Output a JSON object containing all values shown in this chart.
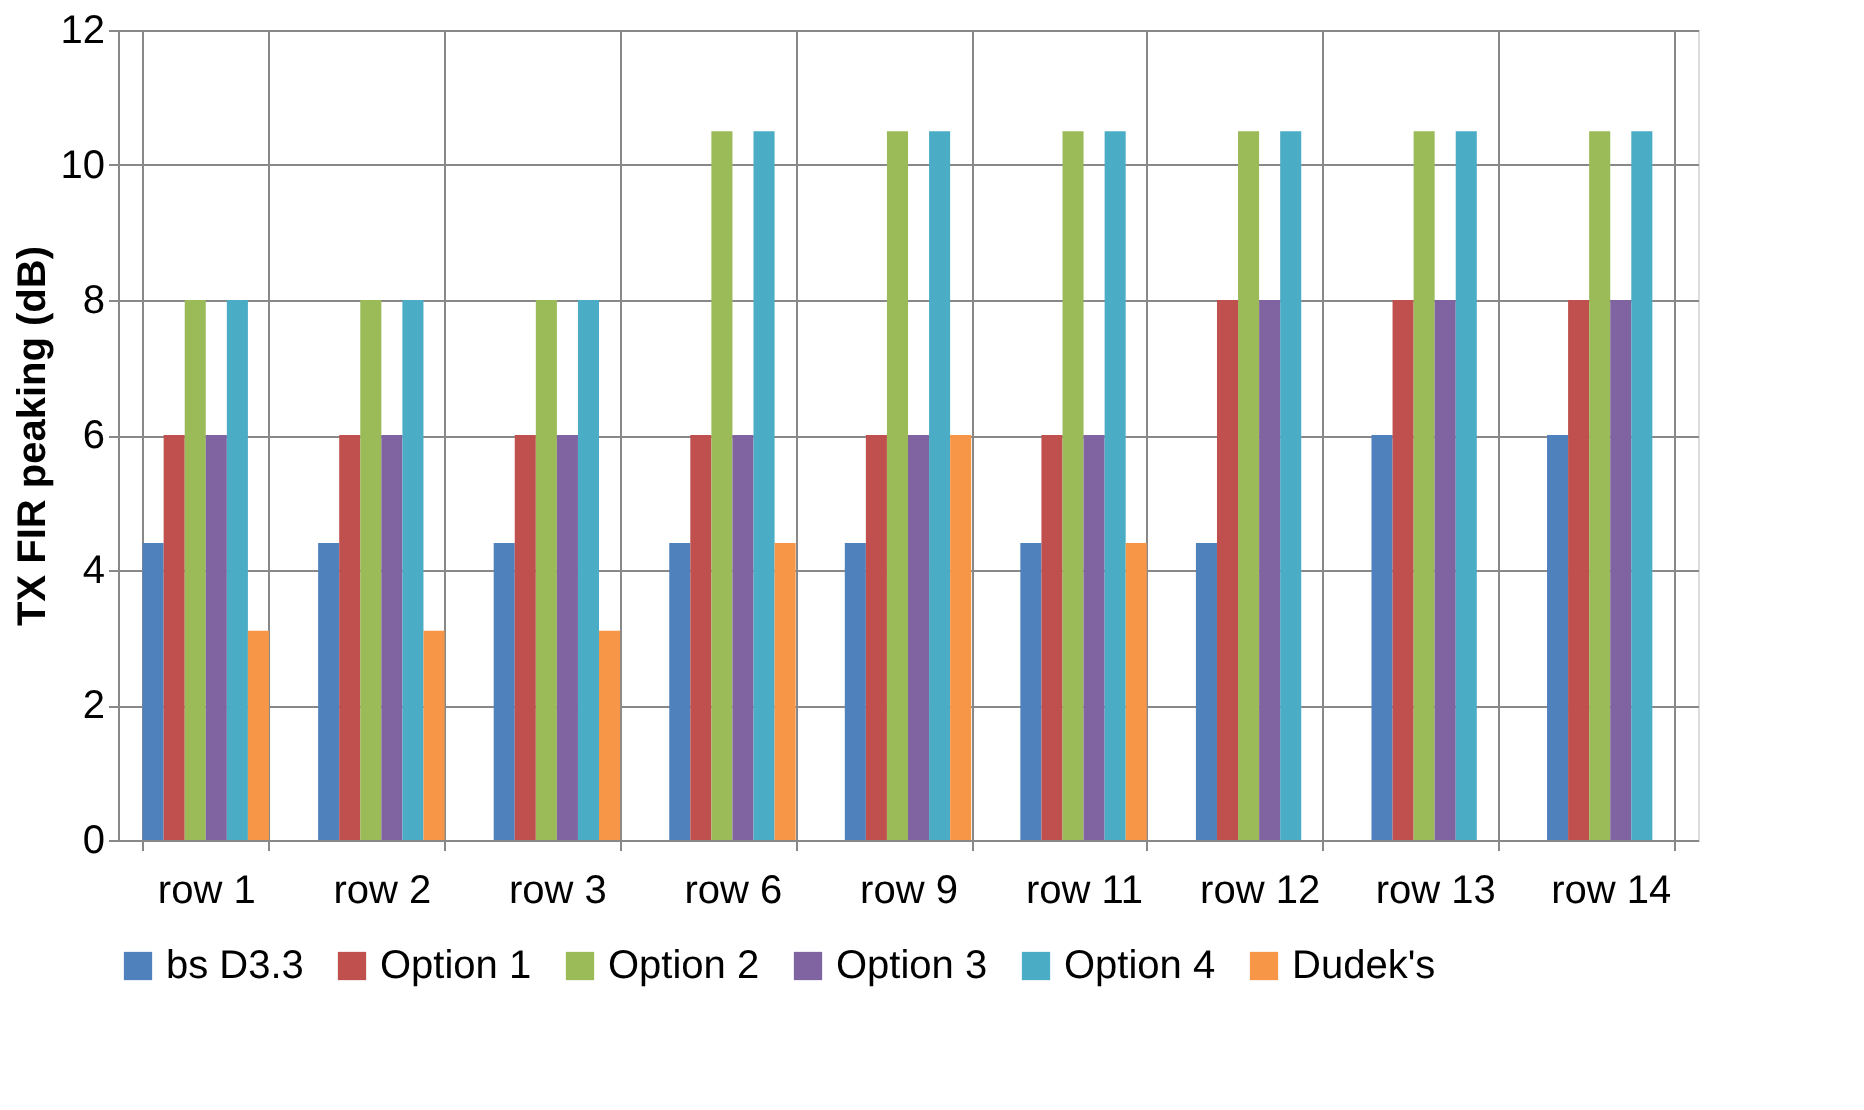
{
  "chart_data": {
    "type": "bar",
    "ylabel": "TX FIR peaking (dB)",
    "categories": [
      "row 1",
      "row 2",
      "row 3",
      "row 6",
      "row 9",
      "row 11",
      "row 12",
      "row 13",
      "row 14"
    ],
    "series": [
      {
        "name": "bs D3.3",
        "color": "#4f81bd",
        "values": [
          4.4,
          4.4,
          4.4,
          4.4,
          4.4,
          4.4,
          4.4,
          6,
          6
        ]
      },
      {
        "name": "Option 1",
        "color": "#c0504d",
        "values": [
          6,
          6,
          6,
          6,
          6,
          6,
          8,
          8,
          8
        ]
      },
      {
        "name": "Option 2",
        "color": "#9bbb59",
        "values": [
          8,
          8,
          8,
          10.5,
          10.5,
          10.5,
          10.5,
          10.5,
          10.5
        ]
      },
      {
        "name": "Option 3",
        "color": "#8064a2",
        "values": [
          6,
          6,
          6,
          6,
          6,
          6,
          8,
          8,
          8
        ]
      },
      {
        "name": "Option 4",
        "color": "#4bacc6",
        "values": [
          8,
          8,
          8,
          10.5,
          10.5,
          10.5,
          10.5,
          10.5,
          10.5
        ]
      },
      {
        "name": "Dudek's",
        "color": "#f79646",
        "values": [
          3.1,
          3.1,
          3.1,
          4.4,
          6,
          4.4,
          null,
          null,
          null
        ]
      }
    ],
    "ylim": [
      0,
      12
    ],
    "yticks": [
      0,
      2,
      4,
      6,
      8,
      10,
      12
    ],
    "grid": true,
    "legend": "bottom"
  }
}
